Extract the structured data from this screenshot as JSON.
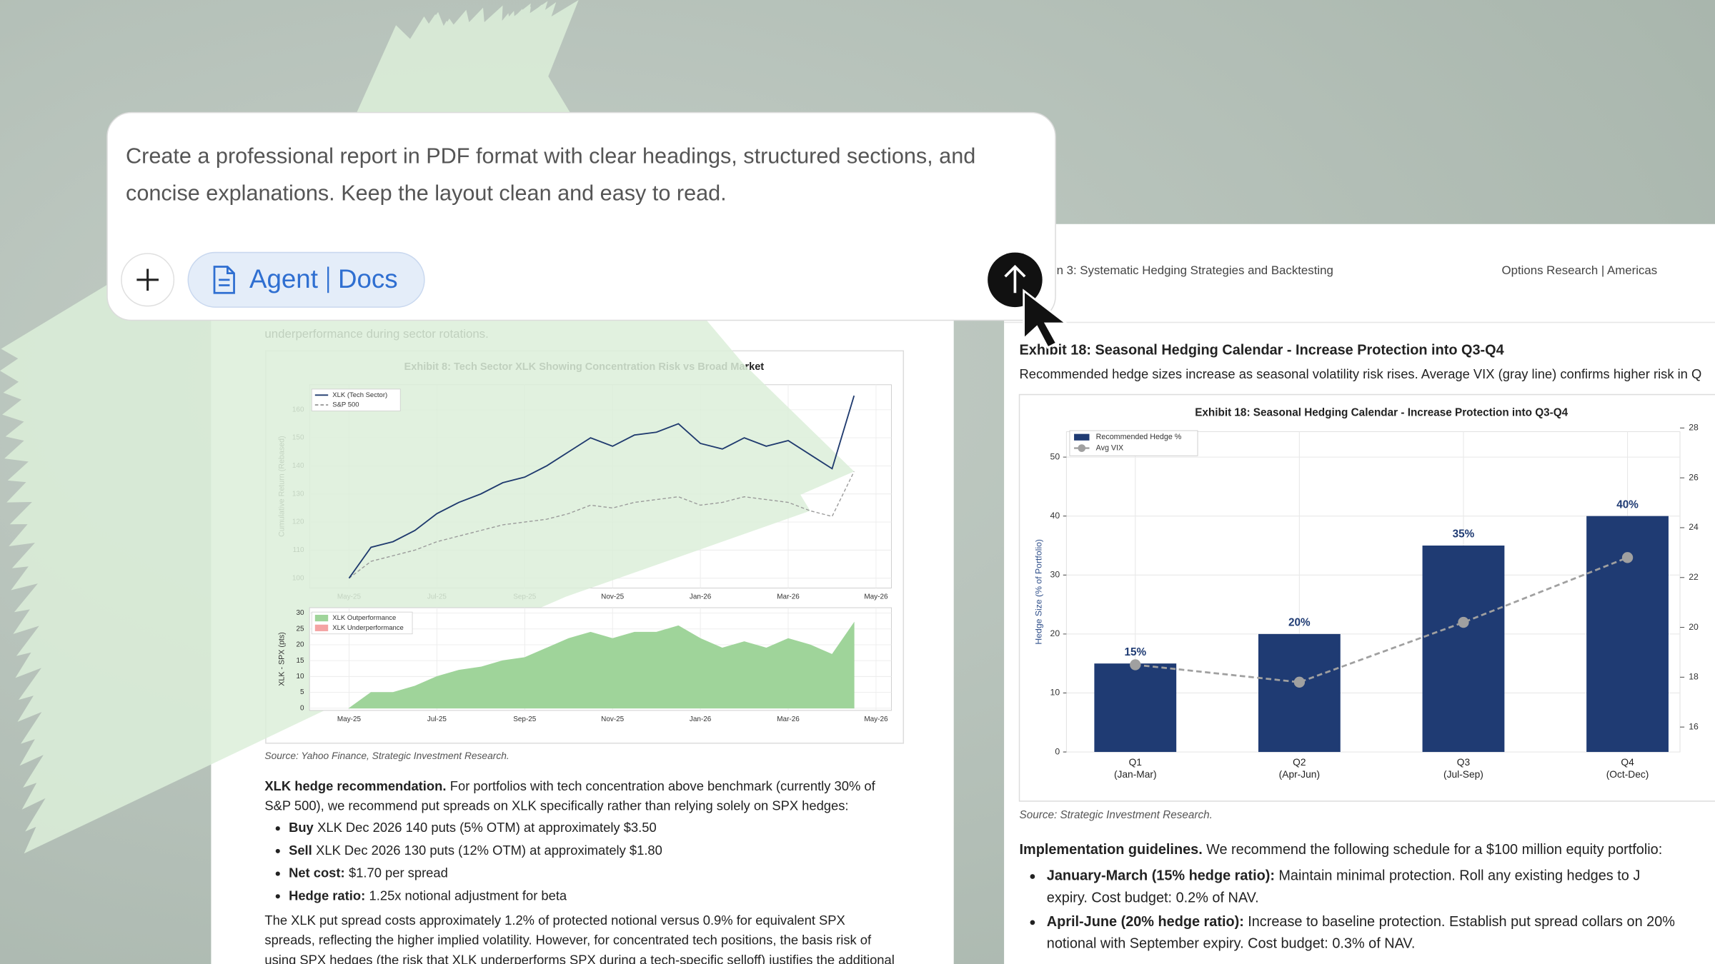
{
  "prompt": {
    "lines": [
      "Create a professional report in PDF format with clear headings, structured sections, and",
      "concise explanations. Keep the layout clean and easy to read."
    ],
    "mode": "Agent",
    "tool": "Docs"
  },
  "left_page": {
    "intro_tail": "underperformance during sector rotations.",
    "chart_data": {
      "type": "line",
      "title": "Exhibit 8: Tech Sector XLK Showing Concentration Risk vs Broad Market",
      "x": [
        0,
        0.5,
        1,
        1.5,
        2,
        2.5,
        3,
        3.5,
        4,
        4.5,
        5,
        5.5,
        6,
        6.5,
        7,
        7.5,
        8,
        8.5,
        9,
        9.5,
        10,
        10.5,
        11,
        11.5
      ],
      "xlim": [
        -0.9,
        12.35
      ],
      "xticks": [
        {
          "value": 0,
          "label": "May-25"
        },
        {
          "value": 2,
          "label": "Jul-25"
        },
        {
          "value": 4,
          "label": "Sep-25"
        },
        {
          "value": 6,
          "label": "Nov-25"
        },
        {
          "value": 8,
          "label": "Jan-26"
        },
        {
          "value": 10,
          "label": "Mar-26"
        },
        {
          "value": 12,
          "label": "May-26"
        }
      ],
      "panels": [
        {
          "type": "line",
          "ylabel": "Cumulative Return (Rebased)",
          "ylim": [
            96.5,
            168.9
          ],
          "yticks": [
            100,
            110,
            120,
            130,
            140,
            150,
            160
          ],
          "grid": true,
          "series": [
            {
              "name": "XLK (Tech Sector)",
              "color": "#1f3a6e",
              "values": [
                100,
                111,
                113,
                117,
                123,
                127,
                130,
                134,
                136,
                140,
                145,
                150,
                147,
                151,
                152,
                155,
                148,
                146,
                150,
                147,
                149,
                144,
                139,
                165
              ]
            },
            {
              "name": "S&P 500",
              "color": "#9a9a9a",
              "dashed": true,
              "values": [
                100,
                106,
                108,
                110,
                113,
                115,
                117,
                119,
                120,
                121,
                123,
                126,
                125,
                127,
                128,
                129,
                126,
                127,
                129,
                128,
                127,
                124,
                122,
                138
              ]
            }
          ]
        },
        {
          "type": "area",
          "ylabel": "XLK - SPX (pts)",
          "ylim": [
            -0.7,
            31.7
          ],
          "yticks": [
            0,
            5,
            10,
            15,
            20,
            25,
            30
          ],
          "grid": true,
          "series": [
            {
              "name": "XLK Outperformance",
              "color": "#9fd49a",
              "values": [
                0,
                5,
                5,
                7,
                10,
                12,
                13,
                15,
                16,
                19,
                22,
                24,
                22,
                24,
                24,
                26,
                22,
                19,
                21,
                19,
                22,
                20,
                17,
                27
              ]
            },
            {
              "name": "XLK Underperformance",
              "color": "#f4a3a3",
              "values": [
                null,
                null,
                null,
                null,
                null,
                null,
                null,
                null,
                null,
                null,
                null,
                null,
                null,
                null,
                null,
                null,
                null,
                null,
                null,
                null,
                null,
                null,
                null,
                null
              ]
            }
          ]
        }
      ]
    },
    "source": "Source: Yahoo Finance, Strategic Investment Research.",
    "recommendation": {
      "lead": "XLK hedge recommendation.",
      "lines": [
        "For portfolios with tech concentration above benchmark (currently 30% of",
        "S&P 500), we recommend put spreads on XLK specifically rather than relying solely on SPX hedges:"
      ]
    },
    "bullets": [
      {
        "bold": "Buy",
        "text": "XLK Dec 2026 140 puts (5% OTM) at approximately $3.50"
      },
      {
        "bold": "Sell",
        "text": "XLK Dec 2026 130 puts (12% OTM) at approximately $1.80"
      },
      {
        "bold": "Net cost:",
        "text": "$1.70 per spread"
      },
      {
        "bold": "Hedge ratio:",
        "text": "1.25x notional adjustment for beta"
      }
    ],
    "closing_lines": [
      "The XLK put spread costs approximately 1.2% of protected notional versus 0.9% for equivalent SPX",
      "spreads, reflecting the higher implied volatility. However, for concentrated tech positions, the basis risk of",
      "using SPX hedges (the risk that XLK underperforms SPX during a tech-specific selloff) justifies the additional"
    ]
  },
  "right_page": {
    "header_left": "n 3: Systematic Hedging Strategies and Backtesting",
    "header_right": "Options Research | Americas",
    "title": "Exhibit 18: Seasonal Hedging Calendar - Increase Protection into Q3-Q4",
    "subtitle": "Recommended hedge sizes increase as seasonal volatility risk rises. Average VIX (gray line) confirms higher risk in Q",
    "chart_data": {
      "type": "bar",
      "title": "Exhibit 18: Seasonal Hedging Calendar - Increase Protection into Q3-Q4",
      "categories": [
        "Q1",
        "Q2",
        "Q3",
        "Q4"
      ],
      "category_periods": [
        "(Jan-Mar)",
        "(Apr-Jun)",
        "(Jul-Sep)",
        "(Oct-Dec)"
      ],
      "ylabel": "Hedge Size (% of Portfolio)",
      "ylim": [
        0,
        54.3
      ],
      "yticks": [
        0,
        10,
        20,
        30,
        40,
        50
      ],
      "y2lim": [
        15,
        27.85
      ],
      "y2ticks": [
        16,
        18,
        20,
        22,
        24,
        26,
        28
      ],
      "grid": true,
      "series": [
        {
          "name": "Recommended Hedge %",
          "color": "#1f3b73",
          "values": [
            15,
            20,
            35,
            40
          ],
          "value_labels": [
            "15%",
            "20%",
            "35%",
            "40%"
          ]
        },
        {
          "name": "Avg VIX",
          "color": "#a0a0a0",
          "axis": "y2",
          "values": [
            18.5,
            17.8,
            20.2,
            22.8
          ]
        }
      ]
    },
    "source": "Source: Strategic Investment Research.",
    "guidelines": {
      "lead": "Implementation guidelines.",
      "text": "We recommend the following schedule for a $100 million equity portfolio:"
    },
    "bullets": [
      {
        "bold": "January-March (15% hedge ratio):",
        "lines": [
          "Maintain minimal protection. Roll any existing hedges to J",
          "expiry. Cost budget: 0.2% of NAV."
        ]
      },
      {
        "bold": "April-June (20% hedge ratio):",
        "lines": [
          "Increase to baseline protection. Establish put spread collars on 20%",
          "notional with September expiry. Cost budget: 0.3% of NAV."
        ]
      }
    ]
  }
}
